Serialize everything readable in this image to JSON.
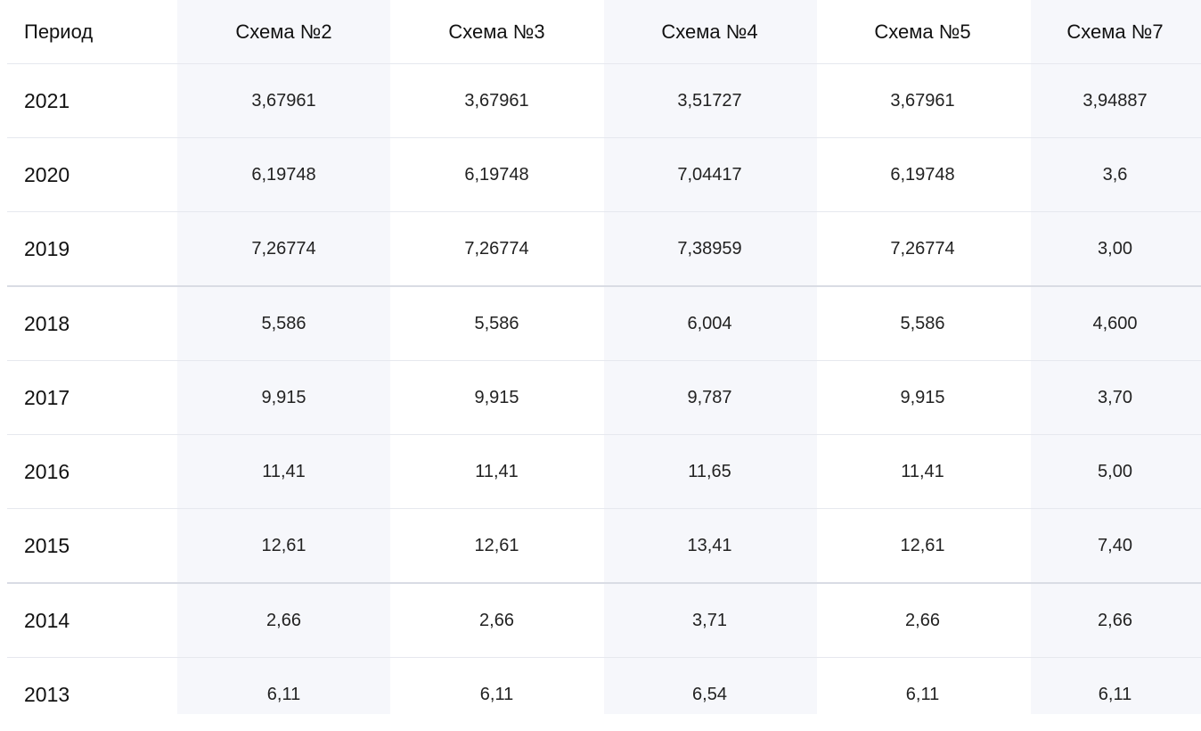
{
  "table": {
    "headers": [
      "Период",
      "Схема №2",
      "Схема №3",
      "Схема №4",
      "Схема №5",
      "Схема №7"
    ],
    "rows": [
      [
        "2021",
        "3,67961",
        "3,67961",
        "3,51727",
        "3,67961",
        "3,94887"
      ],
      [
        "2020",
        "6,19748",
        "6,19748",
        "7,04417",
        "6,19748",
        "3,6"
      ],
      [
        "2019",
        "7,26774",
        "7,26774",
        "7,38959",
        "7,26774",
        "3,00"
      ],
      [
        "2018",
        "5,586",
        "5,586",
        "6,004",
        "5,586",
        "4,600"
      ],
      [
        "2017",
        "9,915",
        "9,915",
        "9,787",
        "9,915",
        "3,70"
      ],
      [
        "2016",
        "11,41",
        "11,41",
        "11,65",
        "11,41",
        "5,00"
      ],
      [
        "2015",
        "12,61",
        "12,61",
        "13,41",
        "12,61",
        "7,40"
      ],
      [
        "2014",
        "2,66",
        "2,66",
        "3,71",
        "2,66",
        "2,66"
      ],
      [
        "2013",
        "6,11",
        "6,11",
        "6,54",
        "6,11",
        "6,11"
      ]
    ]
  }
}
